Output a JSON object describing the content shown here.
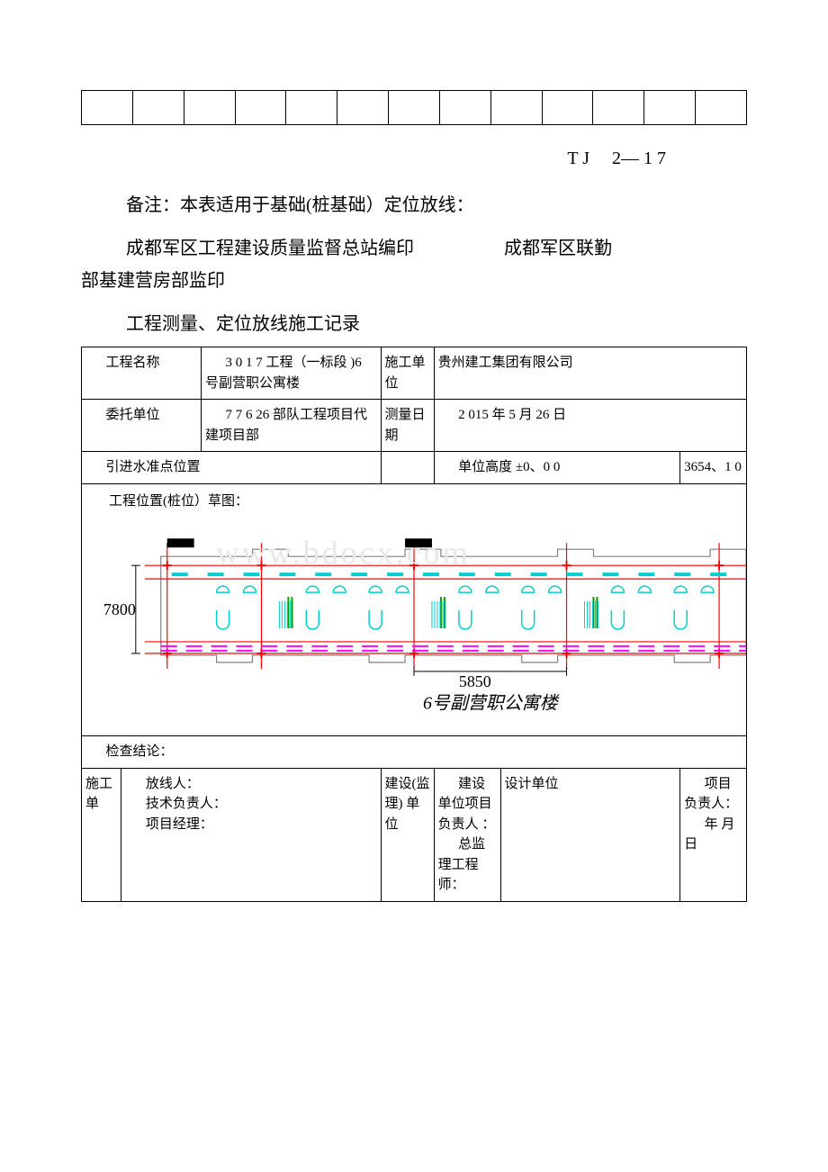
{
  "doc_code": "T J　 2— 1 7",
  "note": "备注：本表适用于基础(桩基础）定位放线：",
  "org_left": "成都军区工程建设质量监督总站编印",
  "org_right": "成都军区联勤部基建营房部监印",
  "title": "工程测量、定位放线施工记录",
  "row1": {
    "label1": "工程名称",
    "val1": "3 0 1 7 工程（一标段 )6 号副营职公寓楼",
    "label2": "施工单位",
    "val2": "贵州建工集团有限公司"
  },
  "row2": {
    "label1": "委托单位",
    "val1": "7 7 6 26 部队工程项目代建项目部",
    "label2": "测量日期",
    "val2": "2 015 年 5 月 26 日"
  },
  "row3": {
    "label1": "引进水准点位置",
    "label2": "单位高度 ±0、0 0",
    "val2": "3654、1 0"
  },
  "diagram_title": "工程位置(桩位）草图：",
  "diagram": {
    "dim_left": "7800",
    "dim_bottom": "5850",
    "caption": "6号副营职公寓楼",
    "colors": {
      "red": "#ff0000",
      "cyan": "#00d0d0",
      "magenta": "#ff00ff",
      "green": "#00a000",
      "black": "#000000",
      "bg": "#ffffff"
    }
  },
  "conclusion_label": "检查结论：",
  "sig": {
    "col1_head": "施工单",
    "col1_a": "放线人：",
    "col1_b": "技术负责人：",
    "col1_c": "项目经理：",
    "col2_head": "建设(监理) 单位",
    "col2_a": "建设单位项目负责人 ：",
    "col2_b": "总监理工程师：",
    "col3_head": "设计单位",
    "col3_a": "项目负责人：",
    "col3_b": "年 月 日"
  },
  "watermark": "www.bdocx.com",
  "empty_table_cols": 13
}
